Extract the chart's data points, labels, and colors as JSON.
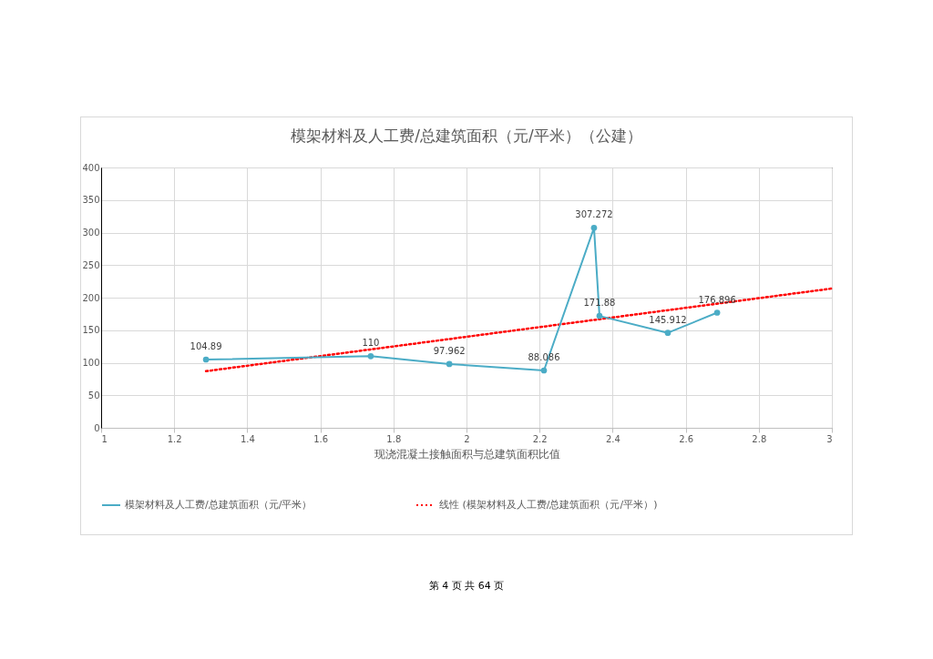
{
  "chart_data": {
    "type": "line",
    "title": "模架材料及人工费/总建筑面积（元/平米）（公建）",
    "xlabel": "现浇混凝土接触面积与总建筑面积比值",
    "xlim": [
      1,
      3
    ],
    "xticks": [
      1,
      1.2,
      1.4,
      1.6,
      1.8,
      2,
      2.2,
      2.4,
      2.6,
      2.8,
      3
    ],
    "ylim": [
      0,
      400
    ],
    "yticks": [
      0,
      50,
      100,
      150,
      200,
      250,
      300,
      350,
      400
    ],
    "grid": true,
    "legend": "bottom",
    "series": [
      {
        "name": "模架材料及人工费/总建筑面积（元/平米）",
        "color": "#4bacc6",
        "marker": "circle",
        "line_style": "solid",
        "x": [
          1.287,
          1.738,
          1.953,
          2.212,
          2.349,
          2.364,
          2.551,
          2.686
        ],
        "values": [
          104.89,
          110,
          97.962,
          88.086,
          307.272,
          171.88,
          145.912,
          176.896
        ],
        "value_labels": [
          "104.89",
          "110",
          "97.962",
          "88.086",
          "307.272",
          "171.88",
          "145.912",
          "176.896"
        ]
      },
      {
        "name": "线性 (模架材料及人工费/总建筑面积（元/平米）)",
        "type": "line",
        "color": "#ff0000",
        "marker": "none",
        "line_style": "dotted",
        "x": [
          1.287,
          3
        ],
        "values": [
          87,
          214
        ]
      }
    ],
    "annotations": [
      "第 4 页 共 64 页"
    ]
  }
}
